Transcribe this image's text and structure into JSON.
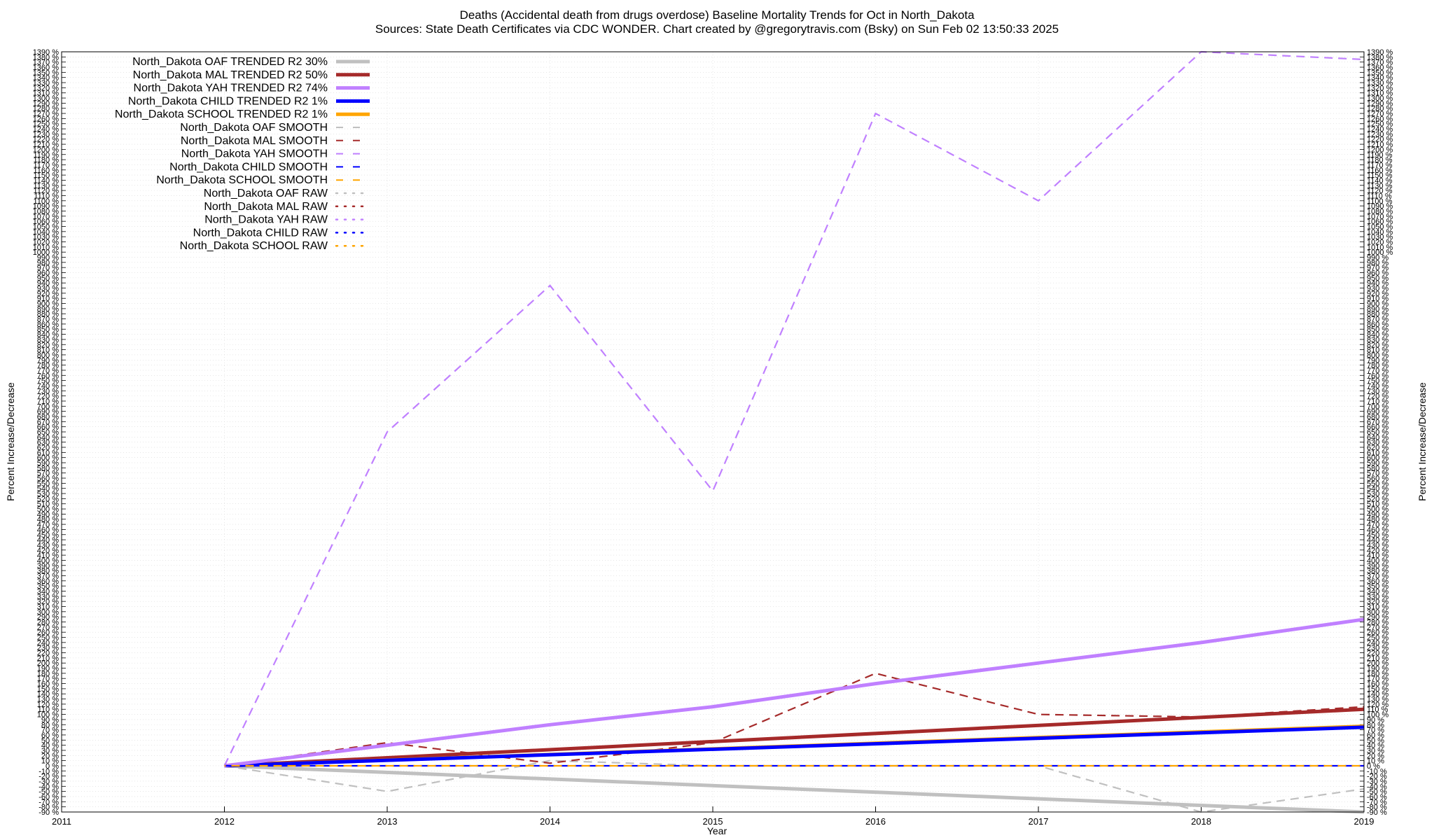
{
  "header": {
    "title_line1": "Deaths (Accidental death from drugs overdose)  Baseline Mortality Trends for Oct in North_Dakota",
    "title_line2": "Sources: State Death Certificates via CDC WONDER.              Chart created by @gregorytravis.com (Bsky) on Sun Feb 02 13:50:33 2025"
  },
  "chart_data": {
    "type": "line",
    "xlabel": "Year",
    "ylabel": "Percent Increase/Decrease",
    "xlim": [
      2011,
      2019
    ],
    "ylim": [
      -90,
      1390
    ],
    "x_ticks": [
      2011,
      2012,
      2013,
      2014,
      2015,
      2016,
      2017,
      2018,
      2019
    ],
    "y_tick_step": 10,
    "y_tick_suffix": " %",
    "grid": true,
    "legend_position": "top-left",
    "series": [
      {
        "name": "North_Dakota OAF TRENDED R2  30%",
        "style": "trend",
        "color": "#c0c0c0",
        "x": [
          2012,
          2019
        ],
        "y": [
          0,
          -90
        ]
      },
      {
        "name": "North_Dakota MAL TRENDED R2  50%",
        "style": "trend",
        "color": "#a52a2a",
        "x": [
          2012,
          2019
        ],
        "y": [
          0,
          110
        ]
      },
      {
        "name": "North_Dakota YAH TRENDED R2  74%",
        "style": "trend",
        "color": "#c080ff",
        "x": [
          2012,
          2013,
          2014,
          2015,
          2016,
          2017,
          2018,
          2019
        ],
        "y": [
          0,
          40,
          80,
          115,
          160,
          200,
          240,
          285
        ]
      },
      {
        "name": "North_Dakota CHILD TRENDED R2   1%",
        "style": "trend",
        "color": "#0000ff",
        "x": [
          2012,
          2019
        ],
        "y": [
          0,
          75
        ]
      },
      {
        "name": "North_Dakota SCHOOL TRENDED R2   1%",
        "style": "trend",
        "color": "#ffa500",
        "x": [
          2012,
          2019
        ],
        "y": [
          0,
          77
        ]
      },
      {
        "name": "North_Dakota OAF SMOOTH",
        "style": "smooth",
        "color": "#c0c0c0",
        "x": [
          2012,
          2013,
          2014,
          2015,
          2016,
          2017,
          2018,
          2019
        ],
        "y": [
          0,
          -50,
          10,
          0,
          0,
          0,
          -90,
          -45
        ]
      },
      {
        "name": "North_Dakota MAL SMOOTH",
        "style": "smooth",
        "color": "#a52a2a",
        "x": [
          2012,
          2013,
          2014,
          2015,
          2016,
          2017,
          2018,
          2019
        ],
        "y": [
          0,
          45,
          5,
          45,
          180,
          100,
          95,
          115
        ]
      },
      {
        "name": "North_Dakota YAH SMOOTH",
        "style": "smooth",
        "color": "#c080ff",
        "x": [
          2012,
          2013,
          2014,
          2015,
          2016,
          2017,
          2018,
          2019
        ],
        "y": [
          0,
          650,
          935,
          535,
          1270,
          1100,
          1390,
          1375
        ]
      },
      {
        "name": "North_Dakota CHILD SMOOTH",
        "style": "smooth",
        "color": "#0000ff",
        "x": [
          2012,
          2019
        ],
        "y": [
          0,
          0
        ]
      },
      {
        "name": "North_Dakota SCHOOL SMOOTH",
        "style": "smooth",
        "color": "#ffa500",
        "x": [
          2012,
          2019
        ],
        "y": [
          0,
          0
        ]
      },
      {
        "name": "North_Dakota OAF RAW",
        "style": "raw",
        "color": "#c0c0c0",
        "x": [],
        "y": []
      },
      {
        "name": "North_Dakota MAL RAW",
        "style": "raw",
        "color": "#a52a2a",
        "x": [],
        "y": []
      },
      {
        "name": "North_Dakota YAH RAW",
        "style": "raw",
        "color": "#c080ff",
        "x": [],
        "y": []
      },
      {
        "name": "North_Dakota CHILD RAW",
        "style": "raw",
        "color": "#0000ff",
        "x": [],
        "y": []
      },
      {
        "name": "North_Dakota SCHOOL RAW",
        "style": "raw",
        "color": "#ffa500",
        "x": [],
        "y": []
      }
    ]
  }
}
